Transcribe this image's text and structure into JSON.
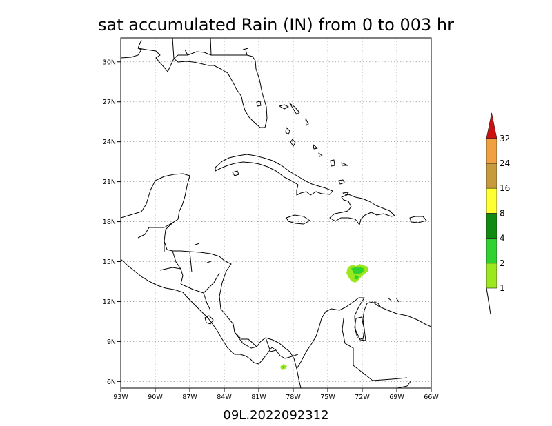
{
  "title": "sat accumulated Rain (IN) from 0 to 003 hr",
  "subtitle": "09L.2022092312",
  "map": {
    "lon_ticks": [
      -93,
      -90,
      -87,
      -84,
      -81,
      -78,
      -75,
      -72,
      -69,
      -66
    ],
    "lat_ticks": [
      6,
      9,
      12,
      15,
      18,
      21,
      24,
      27,
      30
    ],
    "lon_labels": [
      "93W",
      "90W",
      "87W",
      "84W",
      "81W",
      "78W",
      "75W",
      "72W",
      "69W",
      "66W"
    ],
    "lat_labels": [
      "6N",
      "9N",
      "12N",
      "15N",
      "18N",
      "21N",
      "24N",
      "27N",
      "30N"
    ],
    "lon_range": [
      -93,
      -66
    ],
    "lat_range": [
      5.5,
      31.8
    ],
    "grid": true
  },
  "colorbar": {
    "labels": [
      "1",
      "2",
      "4",
      "8",
      "16",
      "24",
      "32"
    ],
    "colors": [
      "#9be81e",
      "#2fd22f",
      "#118a11",
      "#ffff33",
      "#c79a3c",
      "#f0a040",
      "#cc1111"
    ]
  },
  "rain_areas": [
    {
      "name": "rain-patch-caribbean",
      "lon": -72.0,
      "lat": 14.4,
      "category": "1-2"
    },
    {
      "name": "rain-patch-panama",
      "lon": -78.4,
      "lat": 7.1,
      "category": "1-2"
    }
  ]
}
